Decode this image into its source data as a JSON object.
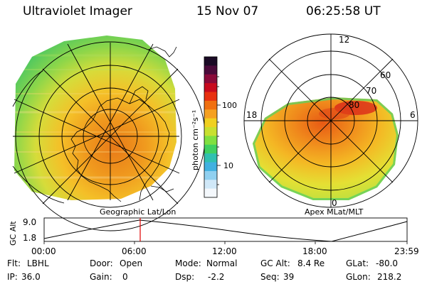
{
  "header": {
    "title": "Ultraviolet Imager",
    "date": "15 Nov 07",
    "time": "06:25:58 UT"
  },
  "colorbar": {
    "unit_label": "photon cm⁻²s⁻¹",
    "tick_high": "100",
    "tick_low": "10",
    "colors_top_to_bottom": [
      "#1a0a25",
      "#4a0a3a",
      "#8a0a3a",
      "#c80a1e",
      "#e83010",
      "#f07010",
      "#f5a020",
      "#f0d020",
      "#c8e030",
      "#80e040",
      "#40d060",
      "#30c0b0",
      "#40b0e0",
      "#90d0f0",
      "#d0e8f8",
      "#f4f8fc"
    ]
  },
  "left_panel": {
    "caption": "Geographic Lat/Lon"
  },
  "right_panel": {
    "caption": "Apex MLat/MLT",
    "mlt_labels": {
      "top": "12",
      "left": "18",
      "right": "6",
      "bottom": "0"
    },
    "lat_labels": [
      "60",
      "70",
      "80"
    ]
  },
  "altitude_plot": {
    "ylabel": "GC Alt",
    "ytick_top": "9.0",
    "ytick_bottom": "1.8",
    "xticks": [
      "00:00",
      "06:00",
      "12:00",
      "18:00",
      "23:59"
    ]
  },
  "status": {
    "flt_label": "Flt:",
    "flt_value": "LBHL",
    "ip_label": "IP:",
    "ip_value": "36.0",
    "door_label": "Door:",
    "door_value": "Open",
    "gain_label": "Gain:",
    "gain_value": "0",
    "mode_label": "Mode:",
    "mode_value": "Normal",
    "dsp_label": "Dsp:",
    "dsp_value": "-2.2",
    "gcalt_label": "GC Alt:",
    "gcalt_value": "8.4 Re",
    "seq_label": "Seq:",
    "seq_value": "39",
    "glat_label": "GLat:",
    "glat_value": "-80.0",
    "glon_label": "GLon:",
    "glon_value": "218.2"
  }
}
